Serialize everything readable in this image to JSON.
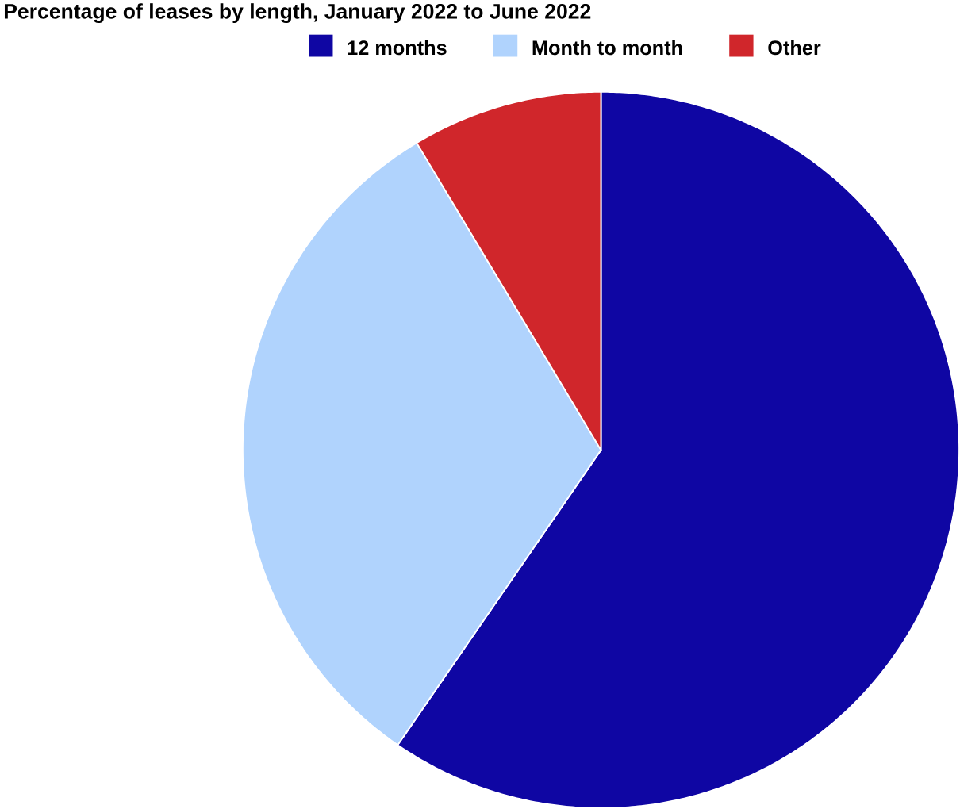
{
  "chart_data": {
    "type": "pie",
    "title": "Percentage of leases by length, January 2022 to June 2022",
    "categories": [
      "12 months",
      "Month to month",
      "Other"
    ],
    "values": [
      59.6,
      31.8,
      8.6
    ],
    "colors": [
      "#0f06a3",
      "#b0d3fd",
      "#d0262b"
    ],
    "legend": "top"
  }
}
